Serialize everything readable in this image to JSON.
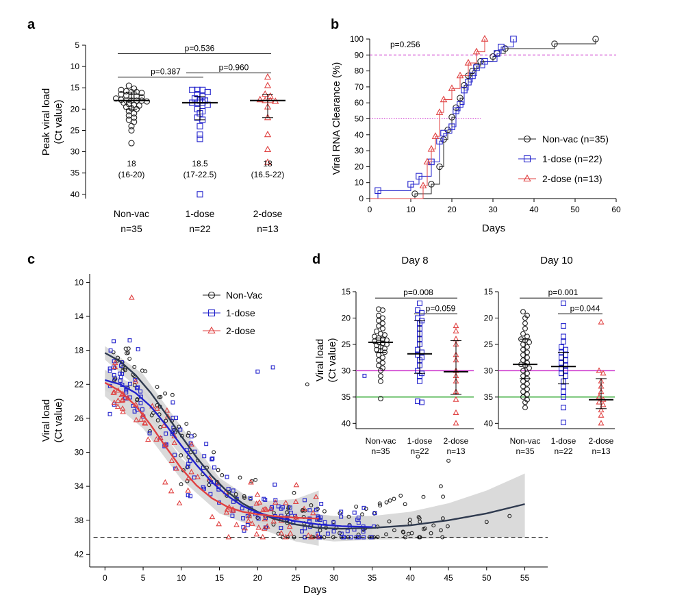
{
  "colors": {
    "nonvac": "#222222",
    "dose1": "#2222cc",
    "dose2": "#e04040",
    "magenta": "#cc33cc",
    "green": "#33aa33",
    "ribbon": "#d4d4d4",
    "nonvac_curve": "#2f3a4f"
  },
  "panel_labels": {
    "a": "a",
    "b": "b",
    "c": "c",
    "d": "d"
  },
  "chart_data": [
    {
      "id": "a",
      "type": "scatter",
      "ylabel": "Peak viral load",
      "ylabel2": "(Ct value)",
      "ylim": [
        5,
        41
      ],
      "yticks": [
        5,
        10,
        15,
        20,
        25,
        30,
        35,
        40
      ],
      "y_reversed": true,
      "categories": [
        {
          "name": "Non-vac",
          "n": "n=35",
          "median": "18",
          "iqr": "(16-20)",
          "med": 18,
          "q1": 16,
          "q3": 20,
          "values": [
            14.5,
            15.2,
            15.5,
            15.8,
            16,
            16,
            16.2,
            16.5,
            16.8,
            17,
            17,
            17.2,
            17.5,
            17.8,
            18,
            18,
            18,
            18,
            18.2,
            18.5,
            18.8,
            19,
            19.2,
            19.5,
            19.8,
            20,
            20.5,
            21,
            21.5,
            22,
            22.5,
            23,
            24,
            25,
            28
          ]
        },
        {
          "name": "1-dose",
          "n": "n=22",
          "median": "18.5",
          "iqr": "(17-22.5)",
          "med": 18.5,
          "q1": 17,
          "q3": 22.5,
          "values": [
            15.5,
            15.5,
            15.5,
            16,
            16.5,
            17,
            17.5,
            18,
            18,
            18.5,
            18.5,
            18.5,
            19,
            20,
            20.5,
            21,
            22,
            22.5,
            24,
            26,
            27,
            40
          ]
        },
        {
          "name": "2-dose",
          "n": "n=13",
          "median": "18",
          "iqr": "(16.5-22)",
          "med": 18,
          "q1": 16.5,
          "q3": 22,
          "values": [
            12.5,
            14.5,
            16.5,
            17,
            17.8,
            18,
            18,
            18.2,
            19.5,
            22,
            26,
            29.5,
            32.5
          ]
        }
      ],
      "pvalues": [
        {
          "from": 0,
          "to": 2,
          "label": "p=0.536",
          "level": 7
        },
        {
          "from": 0,
          "to": 1,
          "label": "p=0.387",
          "level": 12.5
        },
        {
          "from": 1,
          "to": 2,
          "label": "p=0.960",
          "level": 11.5
        }
      ]
    },
    {
      "id": "b",
      "type": "line",
      "xlabel": "Days",
      "ylabel": "Viral RNA Clearance (%)",
      "xlim": [
        0,
        60
      ],
      "xticks": [
        0,
        10,
        20,
        30,
        40,
        50,
        60
      ],
      "ylim": [
        0,
        100
      ],
      "yticks": [
        0,
        10,
        20,
        30,
        40,
        50,
        60,
        70,
        80,
        90,
        100
      ],
      "pvalue": "p=0.256",
      "hline90": 90,
      "hline50": 50,
      "series": [
        {
          "name": "Non-vac (n=35)",
          "marker": "circle",
          "color_key": "nonvac",
          "points": [
            [
              11,
              3
            ],
            [
              15,
              9
            ],
            [
              17,
              20
            ],
            [
              18,
              37
            ],
            [
              19,
              43
            ],
            [
              20,
              51
            ],
            [
              21,
              57
            ],
            [
              22,
              63
            ],
            [
              23,
              71
            ],
            [
              24,
              77
            ],
            [
              25,
              80
            ],
            [
              26,
              83
            ],
            [
              27,
              86
            ],
            [
              30,
              89
            ],
            [
              31,
              91
            ],
            [
              33,
              94
            ],
            [
              45,
              97
            ],
            [
              55,
              100
            ]
          ]
        },
        {
          "name": "1-dose (n=22)",
          "marker": "square",
          "color_key": "dose1",
          "points": [
            [
              2,
              5
            ],
            [
              10,
              9
            ],
            [
              12,
              14
            ],
            [
              15,
              23
            ],
            [
              17,
              36
            ],
            [
              18,
              41
            ],
            [
              20,
              45
            ],
            [
              21,
              55
            ],
            [
              22,
              59
            ],
            [
              23,
              68
            ],
            [
              24,
              73
            ],
            [
              25,
              77
            ],
            [
              26,
              82
            ],
            [
              28,
              86
            ],
            [
              31,
              91
            ],
            [
              32,
              95
            ],
            [
              35,
              100
            ]
          ]
        },
        {
          "name": "2-dose (n=13)",
          "marker": "triangle",
          "color_key": "dose2",
          "points": [
            [
              13,
              8
            ],
            [
              14,
              23
            ],
            [
              15,
              31
            ],
            [
              16,
              39
            ],
            [
              17,
              54
            ],
            [
              18,
              62
            ],
            [
              20,
              69
            ],
            [
              22,
              77
            ],
            [
              24,
              85
            ],
            [
              26,
              92
            ],
            [
              28,
              100
            ]
          ]
        }
      ]
    },
    {
      "id": "c",
      "type": "scatter",
      "xlabel": "Days",
      "ylabel": "Viral load",
      "ylabel2": "(Ct value)",
      "xlim": [
        -2,
        58
      ],
      "xticks": [
        0,
        5,
        10,
        15,
        20,
        25,
        30,
        35,
        40,
        45,
        50,
        55
      ],
      "ylim": [
        9,
        43.5
      ],
      "yticks": [
        10,
        14,
        18,
        22,
        26,
        30,
        34,
        38,
        42
      ],
      "y_reversed": true,
      "lod": 40,
      "legend": [
        "Non-Vac",
        "1-dose",
        "2-dose"
      ],
      "fits": [
        {
          "key": "nonvac",
          "points": [
            [
              0,
              18.3
            ],
            [
              2,
              19.3
            ],
            [
              4,
              20.9
            ],
            [
              6,
              23
            ],
            [
              8,
              25.5
            ],
            [
              10,
              28.1
            ],
            [
              12,
              30.6
            ],
            [
              14,
              32.8
            ],
            [
              16,
              34.6
            ],
            [
              18,
              36
            ],
            [
              20,
              37
            ],
            [
              22,
              37.8
            ],
            [
              25,
              38.5
            ],
            [
              28,
              38.9
            ],
            [
              31,
              39
            ],
            [
              35,
              38.9
            ],
            [
              40,
              38.6
            ],
            [
              45,
              38
            ],
            [
              50,
              37.2
            ],
            [
              55,
              36.1
            ]
          ],
          "band": [
            [
              0,
              17.5,
              19.1
            ],
            [
              5,
              20.8,
              23
            ],
            [
              10,
              27,
              29.2
            ],
            [
              15,
              33,
              35
            ],
            [
              20,
              36,
              38
            ],
            [
              25,
              37,
              40
            ],
            [
              30,
              37.5,
              40.5
            ],
            [
              35,
              37.5,
              40.3
            ],
            [
              40,
              37,
              40.2
            ],
            [
              45,
              36,
              40.1
            ],
            [
              50,
              34.5,
              40
            ],
            [
              55,
              32.5,
              40
            ]
          ]
        },
        {
          "key": "dose1",
          "points": [
            [
              0,
              21.5
            ],
            [
              2,
              22
            ],
            [
              4,
              23
            ],
            [
              6,
              24.6
            ],
            [
              8,
              26.8
            ],
            [
              10,
              29.2
            ],
            [
              12,
              31.5
            ],
            [
              14,
              33.5
            ],
            [
              16,
              35.1
            ],
            [
              18,
              36.3
            ],
            [
              20,
              37.1
            ],
            [
              22,
              37.6
            ],
            [
              25,
              38.1
            ],
            [
              28,
              38.5
            ],
            [
              31,
              38.7
            ],
            [
              35,
              38.8
            ]
          ],
          "band": [
            [
              0,
              20.3,
              22.7
            ],
            [
              5,
              22.6,
              25
            ],
            [
              10,
              28,
              30.4
            ],
            [
              15,
              33.3,
              35.7
            ],
            [
              20,
              36,
              38.3
            ],
            [
              25,
              37,
              39.3
            ],
            [
              30,
              37.5,
              40
            ],
            [
              35,
              37.5,
              40.1
            ]
          ]
        },
        {
          "key": "dose2",
          "points": [
            [
              0,
              21.8
            ],
            [
              2,
              22.8
            ],
            [
              4,
              24.5
            ],
            [
              6,
              26.8
            ],
            [
              8,
              29.4
            ],
            [
              10,
              31.9
            ],
            [
              12,
              33.9
            ],
            [
              14,
              35.4
            ],
            [
              16,
              36.4
            ],
            [
              18,
              37
            ],
            [
              20,
              37.3
            ],
            [
              22,
              37.5
            ],
            [
              25,
              37.7
            ],
            [
              28,
              37.8
            ]
          ],
          "band": [
            [
              0,
              20.3,
              23.4
            ],
            [
              5,
              24.5,
              27.2
            ],
            [
              10,
              30.7,
              33.2
            ],
            [
              15,
              34.8,
              37.2
            ],
            [
              20,
              35.8,
              38.9
            ],
            [
              25,
              35.5,
              40.5
            ],
            [
              28,
              34.5,
              41
            ]
          ]
        }
      ]
    },
    {
      "id": "d8",
      "type": "scatter",
      "title": "Day 8",
      "ylabel": "Viral load",
      "ylabel2": "(Ct value)",
      "ylim": [
        15,
        41
      ],
      "yticks": [
        15,
        20,
        25,
        30,
        35,
        40
      ],
      "y_reversed": true,
      "hline_magenta": 30,
      "hline_green": 35,
      "categories": [
        {
          "name": "Non-vac",
          "n": "n=35",
          "med": 24.6,
          "q1": 23.8,
          "q3": 26.5,
          "values": [
            18.3,
            18.5,
            19.5,
            20,
            20.5,
            21,
            21.5,
            22,
            22.5,
            23,
            23.2,
            23.5,
            23.8,
            24,
            24.2,
            24.4,
            24.6,
            24.8,
            25,
            25.2,
            25.5,
            25.8,
            26,
            26.2,
            26.5,
            27,
            27.5,
            28,
            28.5,
            29,
            29.5,
            30,
            31,
            32,
            35.3
          ]
        },
        {
          "name": "1-dose",
          "n": "n=22",
          "med": 26.8,
          "q1": 20.5,
          "q3": 30.5,
          "values": [
            17.2,
            18.5,
            19,
            20,
            20.5,
            21,
            22,
            23,
            24,
            25,
            26,
            26.5,
            27,
            27.5,
            28,
            29,
            30,
            30.5,
            31,
            32,
            35.8,
            36
          ]
        },
        {
          "name": "2-dose",
          "n": "n=13",
          "med": 30.2,
          "q1": 24.3,
          "q3": 34.5,
          "values": [
            21.5,
            22.5,
            24,
            25,
            27,
            28,
            30,
            31,
            32,
            34,
            35.5,
            38,
            40
          ]
        }
      ],
      "pvalues": [
        {
          "from": 0,
          "to": 2,
          "label": "p=0.008",
          "level": 16.2
        },
        {
          "from": 1,
          "to": 2,
          "label": "p=0.059",
          "level": 19.2
        }
      ]
    },
    {
      "id": "d10",
      "type": "scatter",
      "title": "Day 10",
      "ylim": [
        15,
        41
      ],
      "yticks": [
        15,
        20,
        25,
        30,
        35,
        40
      ],
      "y_reversed": true,
      "hline_magenta": 30,
      "hline_green": 35,
      "categories": [
        {
          "name": "Non-vac",
          "n": "n=35",
          "med": 28.8,
          "q1": 24,
          "q3": 31.5,
          "values": [
            18.8,
            19.5,
            20,
            21,
            22,
            23,
            23.5,
            24,
            24.3,
            24.6,
            25,
            25.5,
            26,
            26.5,
            27,
            27.5,
            28,
            28.5,
            28.8,
            29,
            29.5,
            30,
            30.5,
            31,
            31.5,
            32,
            32.5,
            33,
            33.5,
            34,
            34.5,
            35,
            35.5,
            36,
            37
          ]
        },
        {
          "name": "1-dose",
          "n": "n=22",
          "med": 29.2,
          "q1": 26.5,
          "q3": 32.5,
          "values": [
            17.2,
            21.5,
            23.5,
            24.5,
            25.5,
            26,
            26.5,
            27,
            27.5,
            28,
            28.5,
            29,
            29.5,
            30,
            30.5,
            31,
            32,
            33,
            34,
            35,
            37,
            39.8
          ]
        },
        {
          "name": "2-dose",
          "n": "n=13",
          "med": 35.5,
          "q1": 31.5,
          "q3": 37.2,
          "values": [
            20.8,
            30,
            30.5,
            32,
            33,
            34,
            35,
            35.5,
            36,
            36.5,
            37.5,
            38.5,
            40
          ]
        }
      ],
      "pvalues": [
        {
          "from": 0,
          "to": 2,
          "label": "p=0.001",
          "level": 16.2
        },
        {
          "from": 1,
          "to": 2,
          "label": "p=0.044",
          "level": 19.2
        }
      ]
    }
  ]
}
